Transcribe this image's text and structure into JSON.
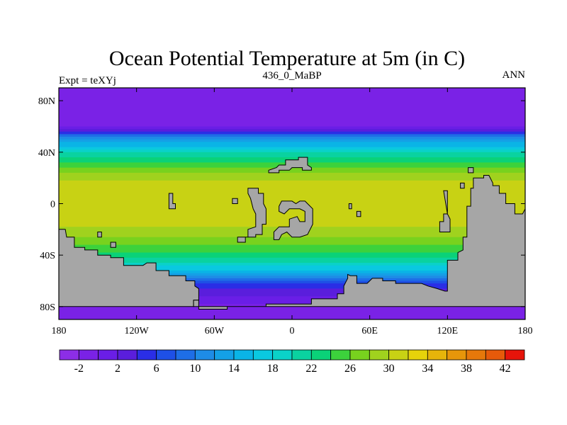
{
  "chart_data": {
    "type": "heatmap",
    "title": "Ocean Potential Temperature at 5m (in C)",
    "left_label": "Expt = teXYj",
    "center_label": "436_0_MaBP",
    "right_label": "ANN",
    "xlabel": "",
    "ylabel": "",
    "xlim": [
      -180,
      180
    ],
    "ylim": [
      -90,
      90
    ],
    "x_ticks": [
      {
        "value": -180,
        "label": "180"
      },
      {
        "value": -120,
        "label": "120W"
      },
      {
        "value": -60,
        "label": "60W"
      },
      {
        "value": 0,
        "label": "0"
      },
      {
        "value": 60,
        "label": "60E"
      },
      {
        "value": 120,
        "label": "120E"
      },
      {
        "value": 180,
        "label": "180"
      }
    ],
    "y_ticks": [
      {
        "value": 80,
        "label": "80N"
      },
      {
        "value": 40,
        "label": "40N"
      },
      {
        "value": 0,
        "label": "0"
      },
      {
        "value": -40,
        "label": "40S"
      },
      {
        "value": -80,
        "label": "80S"
      }
    ],
    "land_color": "#a6a6a6",
    "colorbar": {
      "levels": [
        -4,
        -2,
        0,
        2,
        4,
        6,
        8,
        10,
        12,
        14,
        16,
        18,
        20,
        22,
        24,
        26,
        28,
        30,
        32,
        34,
        36,
        38,
        40,
        42,
        44
      ],
      "labels": [
        {
          "value": -2,
          "label": "-2"
        },
        {
          "value": 2,
          "label": "2"
        },
        {
          "value": 6,
          "label": "6"
        },
        {
          "value": 10,
          "label": "10"
        },
        {
          "value": 14,
          "label": "14"
        },
        {
          "value": 18,
          "label": "18"
        },
        {
          "value": 22,
          "label": "22"
        },
        {
          "value": 26,
          "label": "26"
        },
        {
          "value": 30,
          "label": "30"
        },
        {
          "value": 34,
          "label": "34"
        },
        {
          "value": 38,
          "label": "38"
        },
        {
          "value": 42,
          "label": "42"
        }
      ],
      "colors": [
        "#8c2ee6",
        "#7a22e6",
        "#6a1ee6",
        "#5a1edc",
        "#2a2ee6",
        "#1e50e6",
        "#1e6ee6",
        "#1e8ce6",
        "#14a0e6",
        "#0ab4e6",
        "#0ac8e0",
        "#0ad2c8",
        "#0ad2a0",
        "#0ad278",
        "#3cd23c",
        "#78d21e",
        "#a0d21e",
        "#c8d214",
        "#e6d20a",
        "#e6b40a",
        "#e6960a",
        "#e6780a",
        "#e65a0a",
        "#e6140a"
      ]
    },
    "zonal_profile": [
      {
        "lat": 90,
        "value": -1.8
      },
      {
        "lat": 75,
        "value": -1.8
      },
      {
        "lat": 64,
        "value": -1.6
      },
      {
        "lat": 58,
        "value": 0.5
      },
      {
        "lat": 54,
        "value": 7
      },
      {
        "lat": 50,
        "value": 12
      },
      {
        "lat": 46,
        "value": 15
      },
      {
        "lat": 42,
        "value": 18
      },
      {
        "lat": 36,
        "value": 22
      },
      {
        "lat": 30,
        "value": 25
      },
      {
        "lat": 24,
        "value": 28
      },
      {
        "lat": 18,
        "value": 30
      },
      {
        "lat": 10,
        "value": 31
      },
      {
        "lat": 0,
        "value": 32
      },
      {
        "lat": -10,
        "value": 31.5
      },
      {
        "lat": -18,
        "value": 30
      },
      {
        "lat": -26,
        "value": 28
      },
      {
        "lat": -32,
        "value": 26
      },
      {
        "lat": -38,
        "value": 24
      },
      {
        "lat": -44,
        "value": 21
      },
      {
        "lat": -50,
        "value": 17
      },
      {
        "lat": -56,
        "value": 12
      },
      {
        "lat": -62,
        "value": 6
      },
      {
        "lat": -68,
        "value": 3
      },
      {
        "lat": -74,
        "value": 1
      },
      {
        "lat": -80,
        "value": -1
      },
      {
        "lat": -90,
        "value": -2
      }
    ],
    "land_polygons": [
      {
        "name": "south-continent",
        "points": [
          [
            -180,
            -20
          ],
          [
            -175,
            -20
          ],
          [
            -174,
            -26
          ],
          [
            -168,
            -26
          ],
          [
            -168,
            -34
          ],
          [
            -160,
            -34
          ],
          [
            -160,
            -36
          ],
          [
            -150,
            -36
          ],
          [
            -150,
            -40
          ],
          [
            -140,
            -40
          ],
          [
            -140,
            -42
          ],
          [
            -130,
            -42
          ],
          [
            -130,
            -48
          ],
          [
            -115,
            -48
          ],
          [
            -112,
            -46
          ],
          [
            -105,
            -46
          ],
          [
            -105,
            -52
          ],
          [
            -95,
            -52
          ],
          [
            -95,
            -56
          ],
          [
            -82,
            -56
          ],
          [
            -82,
            -60
          ],
          [
            -75,
            -60
          ],
          [
            -75,
            -64
          ],
          [
            -72,
            -66
          ],
          [
            -72,
            -75
          ],
          [
            -76,
            -75
          ],
          [
            -76,
            -80
          ],
          [
            -180,
            -80
          ]
        ]
      },
      {
        "name": "southern-africa-bridge",
        "points": [
          [
            43,
            -55
          ],
          [
            45,
            -56
          ],
          [
            50,
            -56
          ],
          [
            50,
            -62
          ],
          [
            58,
            -62
          ],
          [
            62,
            -58
          ],
          [
            70,
            -58
          ],
          [
            70,
            -60
          ],
          [
            80,
            -60
          ],
          [
            80,
            -62
          ],
          [
            100,
            -62
          ],
          [
            105,
            -64
          ],
          [
            112,
            -66
          ],
          [
            118,
            -68
          ],
          [
            120,
            -68
          ],
          [
            120,
            -44
          ],
          [
            128,
            -44
          ],
          [
            128,
            -38
          ],
          [
            132,
            -36
          ],
          [
            132,
            -26
          ],
          [
            135,
            -26
          ],
          [
            135,
            -2
          ],
          [
            138,
            -2
          ],
          [
            138,
            12
          ],
          [
            140,
            12
          ],
          [
            140,
            20
          ],
          [
            148,
            20
          ],
          [
            148,
            22
          ],
          [
            152,
            22
          ],
          [
            155,
            16
          ],
          [
            155,
            14
          ],
          [
            160,
            14
          ],
          [
            160,
            8
          ],
          [
            165,
            8
          ],
          [
            165,
            0
          ],
          [
            172,
            0
          ],
          [
            172,
            -8
          ],
          [
            178,
            -8
          ],
          [
            180,
            -4
          ],
          [
            180,
            -80
          ],
          [
            -76,
            -80
          ],
          [
            -76,
            -75
          ],
          [
            -72,
            -75
          ],
          [
            -72,
            -82
          ],
          [
            -50,
            -82
          ],
          [
            -50,
            -80
          ],
          [
            -20,
            -80
          ],
          [
            -20,
            -78
          ],
          [
            15,
            -78
          ],
          [
            15,
            -74
          ],
          [
            35,
            -74
          ],
          [
            35,
            -70
          ],
          [
            40,
            -70
          ],
          [
            40,
            -64
          ],
          [
            43,
            -58
          ]
        ]
      },
      {
        "name": "north-island",
        "points": [
          [
            -10,
            30
          ],
          [
            -5,
            30
          ],
          [
            -5,
            34
          ],
          [
            5,
            34
          ],
          [
            5,
            36
          ],
          [
            12,
            36
          ],
          [
            12,
            30
          ],
          [
            15,
            28
          ],
          [
            15,
            26
          ],
          [
            8,
            26
          ],
          [
            8,
            28
          ],
          [
            0,
            28
          ],
          [
            -2,
            26
          ],
          [
            -10,
            26
          ],
          [
            -10,
            24
          ],
          [
            -18,
            24
          ],
          [
            -18,
            26
          ],
          [
            -12,
            28
          ]
        ]
      },
      {
        "name": "west-pacific-island",
        "points": [
          [
            -95,
            8
          ],
          [
            -92,
            8
          ],
          [
            -92,
            0
          ],
          [
            -90,
            0
          ],
          [
            -90,
            -4
          ],
          [
            -95,
            -4
          ]
        ]
      },
      {
        "name": "south-pacific-islet",
        "points": [
          [
            -150,
            -22
          ],
          [
            -147,
            -22
          ],
          [
            -147,
            -26
          ],
          [
            -150,
            -26
          ]
        ]
      },
      {
        "name": "south-pacific-islet-2",
        "points": [
          [
            -140,
            -30
          ],
          [
            -136,
            -30
          ],
          [
            -136,
            -34
          ],
          [
            -140,
            -34
          ]
        ]
      },
      {
        "name": "central-archipelago",
        "points": [
          [
            -30,
            12
          ],
          [
            -26,
            12
          ],
          [
            -26,
            8
          ],
          [
            -22,
            8
          ],
          [
            -22,
            0
          ],
          [
            -20,
            -4
          ],
          [
            -20,
            -16
          ],
          [
            -23,
            -16
          ],
          [
            -23,
            -24
          ],
          [
            -28,
            -24
          ],
          [
            -28,
            -26
          ],
          [
            -36,
            -26
          ],
          [
            -36,
            -30
          ],
          [
            -42,
            -30
          ],
          [
            -42,
            -26
          ],
          [
            -34,
            -26
          ],
          [
            -34,
            -20
          ],
          [
            -28,
            -18
          ],
          [
            -28,
            -8
          ],
          [
            -30,
            -4
          ],
          [
            -32,
            4
          ],
          [
            -34,
            8
          ],
          [
            -34,
            12
          ]
        ]
      },
      {
        "name": "central-west-islet",
        "points": [
          [
            -46,
            4
          ],
          [
            -42,
            4
          ],
          [
            -42,
            0
          ],
          [
            -46,
            0
          ]
        ]
      },
      {
        "name": "gondwana-inner",
        "points": [
          [
            -10,
            -2
          ],
          [
            -8,
            2
          ],
          [
            0,
            2
          ],
          [
            3,
            0
          ],
          [
            6,
            2
          ],
          [
            10,
            2
          ],
          [
            12,
            0
          ],
          [
            16,
            -4
          ],
          [
            16,
            -16
          ],
          [
            12,
            -24
          ],
          [
            6,
            -26
          ],
          [
            0,
            -26
          ],
          [
            -4,
            -22
          ],
          [
            -8,
            -24
          ],
          [
            -10,
            -28
          ],
          [
            -14,
            -28
          ],
          [
            -14,
            -22
          ],
          [
            -10,
            -18
          ],
          [
            -2,
            -18
          ],
          [
            -2,
            -12
          ],
          [
            4,
            -10
          ],
          [
            6,
            -14
          ],
          [
            10,
            -14
          ],
          [
            10,
            -6
          ],
          [
            6,
            -4
          ],
          [
            -2,
            -4
          ],
          [
            -6,
            -8
          ],
          [
            -10,
            -6
          ]
        ]
      },
      {
        "name": "east-islet",
        "points": [
          [
            44,
            0
          ],
          [
            46,
            0
          ],
          [
            46,
            -4
          ],
          [
            44,
            -4
          ]
        ]
      },
      {
        "name": "east-islet-2",
        "points": [
          [
            50,
            -6
          ],
          [
            53,
            -6
          ],
          [
            53,
            -10
          ],
          [
            50,
            -10
          ]
        ]
      },
      {
        "name": "east-arc",
        "points": [
          [
            117,
            10
          ],
          [
            120,
            10
          ],
          [
            120,
            -8
          ],
          [
            117,
            -8
          ],
          [
            117,
            -14
          ],
          [
            114,
            -14
          ],
          [
            114,
            -22
          ],
          [
            118,
            -22
          ],
          [
            122,
            -22
          ],
          [
            122,
            -12
          ],
          [
            120,
            -8
          ]
        ]
      },
      {
        "name": "east-islet-3",
        "points": [
          [
            130,
            16
          ],
          [
            133,
            16
          ],
          [
            133,
            12
          ],
          [
            130,
            12
          ]
        ]
      },
      {
        "name": "east-islet-4",
        "points": [
          [
            136,
            28
          ],
          [
            140,
            28
          ],
          [
            140,
            24
          ],
          [
            136,
            24
          ]
        ]
      }
    ]
  }
}
